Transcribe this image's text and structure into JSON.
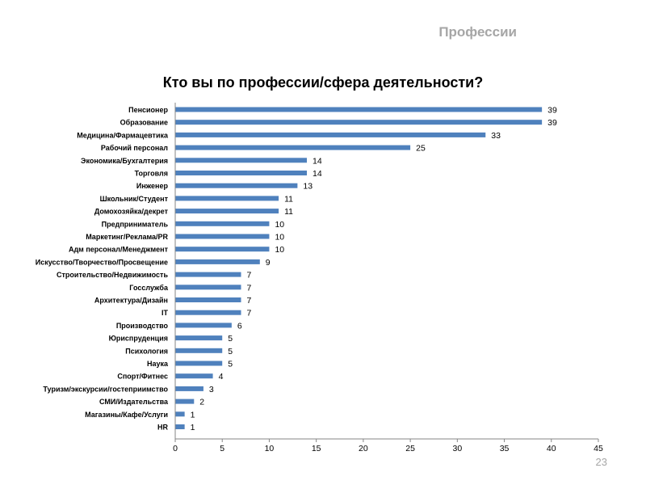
{
  "slide": {
    "header": "Профессии",
    "page_number": "23"
  },
  "chart_data": {
    "type": "bar",
    "orientation": "horizontal",
    "title": "Кто вы по профессии/сфера деятельности?",
    "categories": [
      "Пенсионер",
      "Образование",
      "Медицина/Фармацевтика",
      "Рабочий персонал",
      "Экономика/Бухгалтерия",
      "Торговля",
      "Инженер",
      "Школьник/Студент",
      "Домохозяйка/декрет",
      "Предприниматель",
      "Маркетинг/Реклама/PR",
      "Адм персонал/Менеджмент",
      "Искусство/Творчество/Просвещение",
      "Строительство/Недвижимость",
      "Госслужба",
      "Архитектура/Дизайн",
      "IT",
      "Производство",
      "Юриспруденция",
      "Психология",
      "Наука",
      "Спорт/Фитнес",
      "Туризм/экскурсии/гостеприимство",
      "СМИ/Издательства",
      "Магазины/Кафе/Услуги",
      "HR"
    ],
    "values": [
      39,
      39,
      33,
      25,
      14,
      14,
      13,
      11,
      11,
      10,
      10,
      10,
      9,
      7,
      7,
      7,
      7,
      6,
      5,
      5,
      5,
      4,
      3,
      2,
      1,
      1
    ],
    "xlim": [
      0,
      45
    ],
    "xticks": [
      0,
      5,
      10,
      15,
      20,
      25,
      30,
      35,
      40,
      45
    ],
    "bar_color": "#4f81bd",
    "grid": false,
    "legend": "none"
  }
}
